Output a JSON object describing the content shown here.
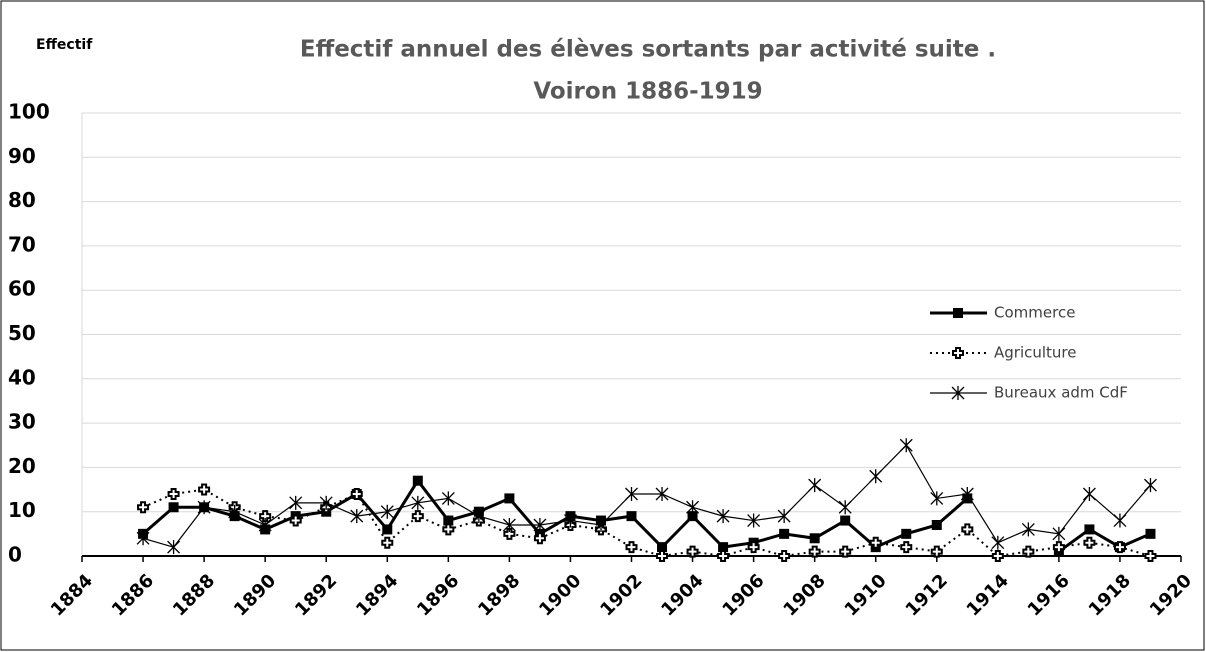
{
  "chart_data": {
    "type": "line",
    "title": "Effectif annuel des élèves sortants par activité suite .",
    "subtitle": "Voiron 1886-1919",
    "y_label": "Effectif",
    "x": [
      1886,
      1887,
      1888,
      1889,
      1890,
      1891,
      1892,
      1893,
      1894,
      1895,
      1896,
      1897,
      1898,
      1899,
      1900,
      1901,
      1902,
      1903,
      1904,
      1905,
      1906,
      1907,
      1908,
      1909,
      1910,
      1911,
      1912,
      1913,
      1914,
      1915,
      1916,
      1917,
      1918,
      1919
    ],
    "series": [
      {
        "name": "Commerce",
        "color": "#000000",
        "values": [
          5,
          11,
          11,
          9,
          6,
          9,
          10,
          14,
          6,
          17,
          8,
          10,
          13,
          5,
          9,
          8,
          9,
          2,
          9,
          2,
          3,
          5,
          4,
          8,
          2,
          5,
          7,
          13,
          null,
          null,
          1,
          6,
          2,
          5
        ]
      },
      {
        "name": "Agriculture",
        "color": "#000000",
        "values": [
          11,
          14,
          15,
          11,
          9,
          8,
          11,
          14,
          3,
          9,
          6,
          8,
          5,
          4,
          7,
          6,
          2,
          0,
          1,
          0,
          2,
          0,
          1,
          1,
          3,
          2,
          1,
          6,
          0,
          1,
          2,
          3,
          2,
          0
        ]
      },
      {
        "name": "Bureaux adm CdF",
        "color": "#000000",
        "values": [
          4,
          2,
          11,
          10,
          7,
          12,
          12,
          9,
          10,
          12,
          13,
          9,
          7,
          7,
          8,
          7,
          14,
          14,
          11,
          9,
          8,
          9,
          16,
          11,
          18,
          25,
          13,
          14,
          3,
          6,
          5,
          14,
          8,
          16
        ]
      }
    ],
    "xlim": [
      1884,
      1920
    ],
    "xticks": [
      1884,
      1886,
      1888,
      1890,
      1892,
      1894,
      1896,
      1898,
      1900,
      1902,
      1904,
      1906,
      1908,
      1910,
      1912,
      1914,
      1916,
      1918,
      1920
    ],
    "ylim": [
      0,
      100
    ],
    "yticks": [
      0,
      10,
      20,
      30,
      40,
      50,
      60,
      70,
      80,
      90,
      100
    ],
    "grid": true,
    "legend": "right"
  }
}
